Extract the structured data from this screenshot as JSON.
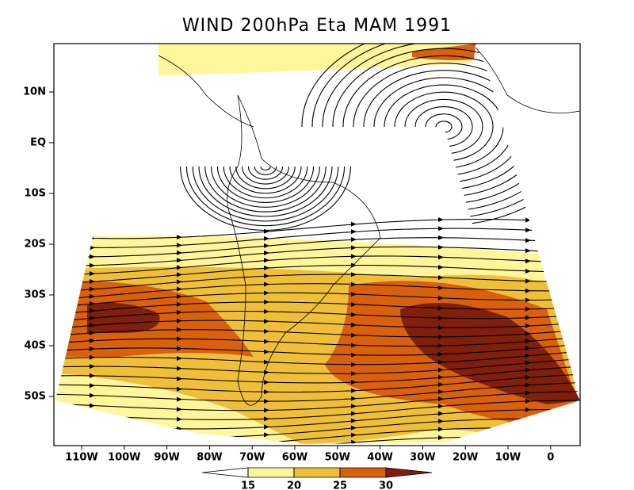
{
  "map": {
    "title": "WIND 200hPa Eta MAM 1991",
    "lat_labels": [
      "10N",
      "EQ",
      "10S",
      "20S",
      "30S",
      "40S",
      "50S"
    ],
    "lon_labels": [
      "110W",
      "100W",
      "90W",
      "80W",
      "70W",
      "60W",
      "50W",
      "40W",
      "30W",
      "20W",
      "10W",
      "0"
    ]
  },
  "colorbar": {
    "levels": [
      15,
      20,
      25,
      30
    ],
    "colors": [
      "#ffffff",
      "#fff59a",
      "#f0bf3a",
      "#d9600c",
      "#7f1f0c"
    ]
  }
}
